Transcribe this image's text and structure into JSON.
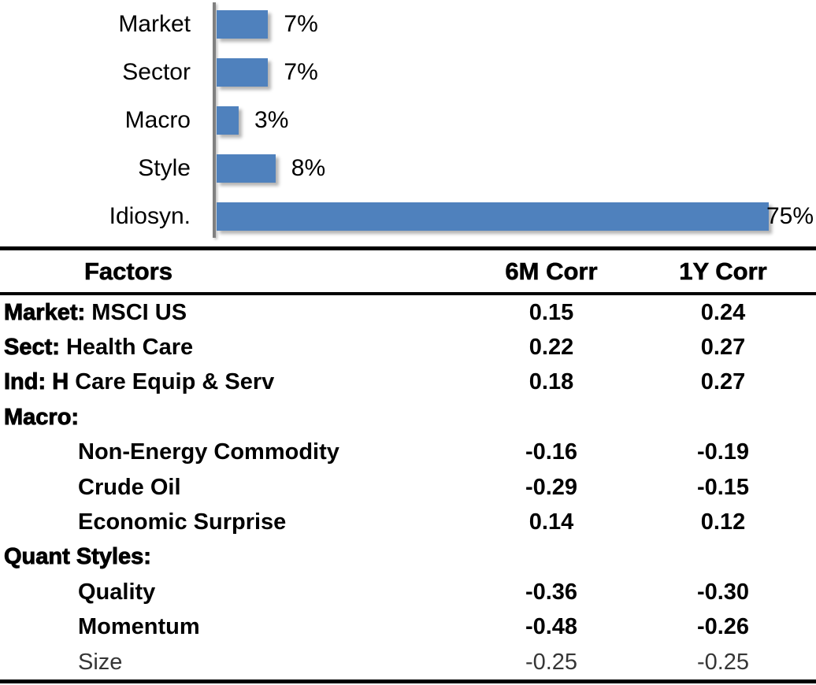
{
  "chart_data": [
    {
      "type": "bar",
      "orientation": "horizontal",
      "title": "",
      "categories": [
        "Market",
        "Sector",
        "Macro",
        "Style",
        "Idiosyn."
      ],
      "values": [
        7,
        7,
        3,
        8,
        75
      ],
      "value_labels": [
        "7%",
        "7%",
        "3%",
        "8%",
        "75%"
      ],
      "unit": "percent",
      "xlim": [
        0,
        75
      ],
      "grid": false,
      "legend": false,
      "bar_color": "#4F81BD",
      "axis_color": "#808080"
    },
    {
      "type": "table",
      "columns": [
        "Factors",
        "6M Corr",
        "1Y Corr"
      ],
      "rows": [
        {
          "prefix": "Market:",
          "name": "MSCI US",
          "indent": false,
          "muted": false,
          "corr_6m": "0.15",
          "corr_1y": "0.24"
        },
        {
          "prefix": "Sect:",
          "name": "Health Care",
          "indent": false,
          "muted": false,
          "corr_6m": "0.22",
          "corr_1y": "0.27"
        },
        {
          "prefix": "Ind: H",
          "name": "Care Equip & Serv",
          "indent": false,
          "muted": false,
          "corr_6m": "0.18",
          "corr_1y": "0.27"
        },
        {
          "prefix": "Macro:",
          "name": "",
          "indent": false,
          "muted": false,
          "corr_6m": "",
          "corr_1y": ""
        },
        {
          "prefix": "",
          "name": "Non-Energy Commodity",
          "indent": true,
          "muted": false,
          "corr_6m": "-0.16",
          "corr_1y": "-0.19"
        },
        {
          "prefix": "",
          "name": "Crude Oil",
          "indent": true,
          "muted": false,
          "corr_6m": "-0.29",
          "corr_1y": "-0.15"
        },
        {
          "prefix": "",
          "name": "Economic Surprise",
          "indent": true,
          "muted": false,
          "corr_6m": "0.14",
          "corr_1y": "0.12"
        },
        {
          "prefix": "Quant Styles:",
          "name": "",
          "indent": false,
          "muted": false,
          "corr_6m": "",
          "corr_1y": ""
        },
        {
          "prefix": "",
          "name": "Quality",
          "indent": true,
          "muted": false,
          "corr_6m": "-0.36",
          "corr_1y": "-0.30"
        },
        {
          "prefix": "",
          "name": "Momentum",
          "indent": true,
          "muted": false,
          "corr_6m": "-0.48",
          "corr_1y": "-0.26"
        },
        {
          "prefix": "",
          "name": "Size",
          "indent": true,
          "muted": true,
          "corr_6m": "-0.25",
          "corr_1y": "-0.25"
        }
      ]
    }
  ]
}
